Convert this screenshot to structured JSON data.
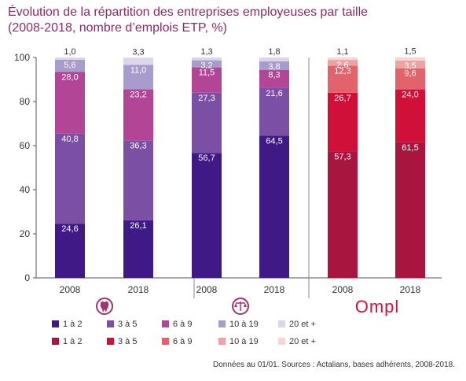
{
  "title_line1": "Évolution de la répartition des entreprises employeuses par taille",
  "title_line2": "(2008-2018, nombre d’emplois ETP, %)",
  "source": "Données au 01/01. Sources : Actalians, bases adhérents, 2008-2018.",
  "colors": {
    "title": "#8a2a6b",
    "purple_1a2": "#3f1a86",
    "purple_3a5": "#7b4fa4",
    "purple_6a9": "#b24595",
    "purple_10a19": "#a79ccc",
    "purple_20plus": "#ddd6ea",
    "red_1a2": "#a81640",
    "red_3a5": "#d11039",
    "red_6a9": "#e2636b",
    "red_10a19": "#eda3a3",
    "red_20plus": "#f6d7d3"
  },
  "groups": [
    {
      "icon": "tooth-icon"
    },
    {
      "icon": "scales-icon"
    },
    {
      "logo_text": "Ompl"
    }
  ],
  "legend": [
    {
      "items": [
        {
          "label": "1 à 2",
          "color": "#3f1a86"
        },
        {
          "label": "3 à 5",
          "color": "#7b4fa4"
        },
        {
          "label": "6 à 9",
          "color": "#b24595"
        },
        {
          "label": "10 à 19",
          "color": "#a79ccc"
        },
        {
          "label": "20 et +",
          "color": "#ddd6ea"
        }
      ]
    },
    {
      "items": [
        {
          "label": "1 à 2",
          "color": "#a81640"
        },
        {
          "label": "3 à 5",
          "color": "#d11039"
        },
        {
          "label": "6 à 9",
          "color": "#e2636b"
        },
        {
          "label": "10 à 19",
          "color": "#eda3a3"
        },
        {
          "label": "20 et +",
          "color": "#f6d7d3"
        }
      ]
    }
  ],
  "chart_data": {
    "type": "bar",
    "stacked": true,
    "ylim": [
      0,
      100
    ],
    "yticks": [
      0,
      20,
      40,
      60,
      80,
      100
    ],
    "categories": [
      "2008",
      "2018",
      "2008",
      "2018",
      "2008",
      "2018"
    ],
    "segments": [
      "1 à 2",
      "3 à 5",
      "6 à 9",
      "10 à 19",
      "20 et +"
    ],
    "bars": [
      {
        "category": "2008",
        "values": [
          24.6,
          40.8,
          28.0,
          5.6,
          1.0
        ],
        "labels": [
          "24,6",
          "40,8",
          "28,0",
          "5,6",
          "1,0"
        ],
        "colors": [
          "#3f1a86",
          "#7b4fa4",
          "#b24595",
          "#a79ccc",
          "#ddd6ea"
        ]
      },
      {
        "category": "2018",
        "values": [
          26.1,
          36.3,
          23.2,
          11.0,
          3.3
        ],
        "labels": [
          "26,1",
          "36,3",
          "23,2",
          "11,0",
          "3,3"
        ],
        "colors": [
          "#3f1a86",
          "#7b4fa4",
          "#b24595",
          "#a79ccc",
          "#ddd6ea"
        ]
      },
      {
        "category": "2008",
        "values": [
          56.7,
          27.3,
          11.5,
          3.2,
          1.3
        ],
        "labels": [
          "56,7",
          "27,3",
          "11,5",
          "3,2",
          "1,3"
        ],
        "colors": [
          "#3f1a86",
          "#7b4fa4",
          "#b24595",
          "#a79ccc",
          "#ddd6ea"
        ]
      },
      {
        "category": "2018",
        "values": [
          64.5,
          21.6,
          8.3,
          3.8,
          1.8
        ],
        "labels": [
          "64,5",
          "21,6",
          "8,3",
          "3,8",
          "1,8"
        ],
        "colors": [
          "#3f1a86",
          "#7b4fa4",
          "#b24595",
          "#a79ccc",
          "#ddd6ea"
        ]
      },
      {
        "category": "2008",
        "values": [
          57.3,
          26.7,
          12.3,
          2.6,
          1.1
        ],
        "labels": [
          "57,3",
          "26,7",
          "12,3",
          "2,6",
          "1,1"
        ],
        "colors": [
          "#a81640",
          "#d11039",
          "#e2636b",
          "#eda3a3",
          "#f6d7d3"
        ]
      },
      {
        "category": "2018",
        "values": [
          61.5,
          24.0,
          9.6,
          3.5,
          1.5
        ],
        "labels": [
          "61,5",
          "24,0",
          "9,6",
          "3,5",
          "1,5"
        ],
        "colors": [
          "#a81640",
          "#d11039",
          "#e2636b",
          "#eda3a3",
          "#f6d7d3"
        ]
      }
    ]
  }
}
